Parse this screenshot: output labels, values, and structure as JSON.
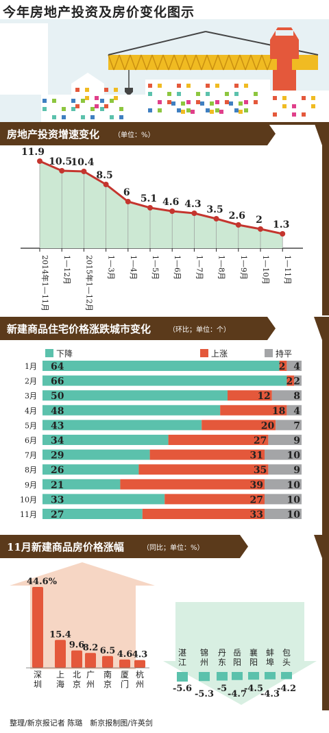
{
  "title": "今年房地产投资及房价变化图示",
  "section1": {
    "title": "房地产投资增速变化",
    "unit": "（单位：%）"
  },
  "section2": {
    "title": "新建商品住宅价格涨跌城市变化",
    "unit": "（环比；单位：个）"
  },
  "section3": {
    "title": "11月新建商品房价格涨幅",
    "unit": "（同比；单位：%）"
  },
  "credits": "整理/新京报记者 陈璐　新京报制图/许英剑",
  "colors": {
    "teal": "#5bc1ac",
    "red": "#e4583b",
    "gray": "#a4a5a7",
    "brown": "#5b3a1b",
    "crane": "#f0bb22",
    "tower": "#e4583b",
    "sky": "#e7f1f4",
    "areaFill": "#cce8d3",
    "lineColor": "#c4352e"
  },
  "chart_data": [
    {
      "type": "line",
      "categories": [
        "2014年1—11月",
        "1—12月",
        "2015年1—12月",
        "1—3月",
        "1—4月",
        "1—5月",
        "1—6月",
        "1—7月",
        "1—8月",
        "1—9月",
        "1—10月",
        "1—11月"
      ],
      "values": [
        11.9,
        10.5,
        10.4,
        8.5,
        6,
        5.1,
        4.6,
        4.3,
        3.5,
        2.6,
        2,
        1.3
      ],
      "labels": [
        "11.9",
        "10.5",
        "10.4",
        "8.5",
        "6",
        "5.1",
        "4.6",
        "4.3",
        "3.5",
        "2.6",
        "2",
        "1.3"
      ],
      "ylim": [
        0,
        13
      ],
      "grid": false
    },
    {
      "type": "bar",
      "stacked": true,
      "orientation": "horizontal",
      "categories": [
        "1月",
        "2月",
        "3月",
        "4月",
        "5月",
        "6月",
        "7月",
        "8月",
        "9月",
        "10月",
        "11月"
      ],
      "series": [
        {
          "name": "下降",
          "color": "#5bc1ac",
          "values": [
            64,
            66,
            50,
            48,
            43,
            34,
            29,
            26,
            21,
            33,
            27
          ]
        },
        {
          "name": "上涨",
          "color": "#e4583b",
          "values": [
            2,
            2,
            12,
            18,
            20,
            27,
            31,
            35,
            39,
            27,
            33
          ]
        },
        {
          "name": "持平",
          "color": "#a4a5a7",
          "values": [
            4,
            2,
            8,
            4,
            7,
            9,
            10,
            9,
            10,
            10,
            10
          ]
        }
      ],
      "total": 70,
      "legend": "top"
    },
    {
      "type": "bar",
      "categories": [
        "深圳",
        "上海",
        "北京",
        "广州",
        "南京",
        "厦门",
        "杭州",
        "湛江",
        "锦州",
        "丹东",
        "岳阳",
        "襄阳",
        "蚌埠",
        "包头"
      ],
      "values": [
        44.6,
        15.4,
        9.6,
        8.2,
        6.5,
        4.6,
        4.3,
        -5.6,
        -5.3,
        -5,
        -4.7,
        -4.5,
        -4.3,
        -4.2
      ],
      "labels": [
        "44.6%",
        "15.4",
        "9.6",
        "8.2",
        "6.5",
        "4.6",
        "4.3",
        "-5.6",
        "-5.3",
        "-5",
        "-4.7",
        "-4.5",
        "-4.3",
        "-4.2"
      ]
    }
  ]
}
